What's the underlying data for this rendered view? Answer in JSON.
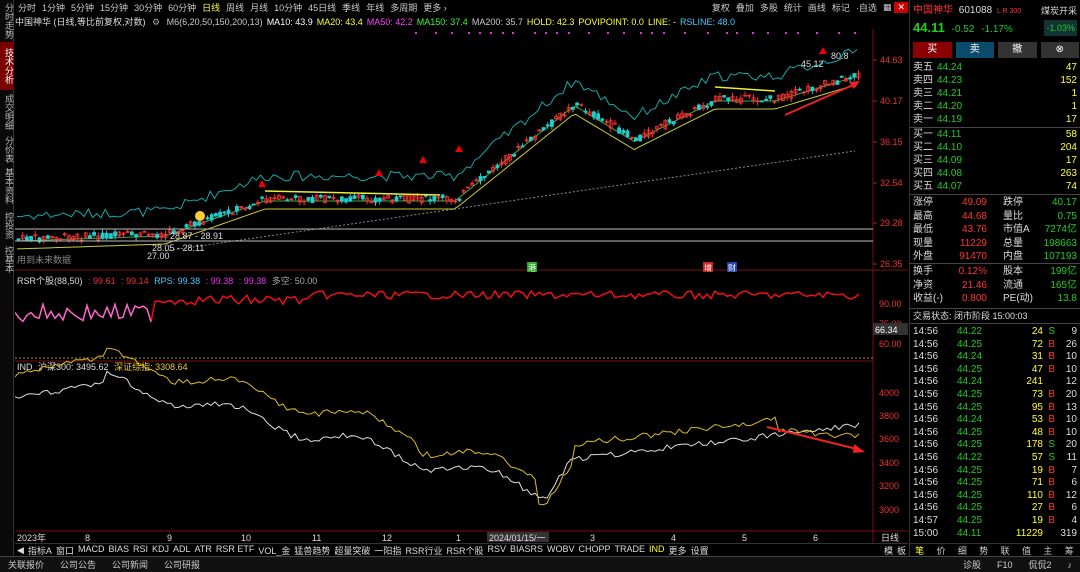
{
  "left_tabs": [
    {
      "label": "分时走势",
      "active": false
    },
    {
      "label": "技术分析",
      "active": true
    },
    {
      "label": "成交明细",
      "active": false
    },
    {
      "label": "分价表",
      "active": false
    },
    {
      "label": "基本资料",
      "active": false
    },
    {
      "label": "控投资",
      "active": false
    },
    {
      "label": "控基本",
      "active": false
    }
  ],
  "toolbar": {
    "periods": [
      "分时",
      "1分钟",
      "5分钟",
      "15分钟",
      "30分钟",
      "60分钟",
      "日线",
      "周线",
      "月线",
      "10分钟",
      "45日线",
      "季线",
      "年线",
      "多周期",
      "更多 ›"
    ],
    "active": "日线",
    "right": [
      "复权",
      "叠加",
      "多股",
      "统计",
      "画线",
      "标记",
      "·自选"
    ]
  },
  "legend": {
    "title": "中国神华 (日线,等比前复权,对数)",
    "items": [
      {
        "text": "M6(6,20,50,150,200,13)",
        "color": "#cccccc"
      },
      {
        "text": "MA10: 43.9",
        "color": "#ffffff"
      },
      {
        "text": "MA20: 43.4",
        "color": "#ffff33"
      },
      {
        "text": "MA50: 42.2",
        "color": "#ff44ff"
      },
      {
        "text": "MA150: 37.4",
        "color": "#33ff33"
      },
      {
        "text": "MA200: 35.7",
        "color": "#cccccc"
      },
      {
        "text": "HOLD: 42.3",
        "color": "#ffff33"
      },
      {
        "text": "POVIPOINT: 0.0",
        "color": "#ffff33"
      },
      {
        "text": "LINE: -",
        "color": "#ffff33"
      },
      {
        "text": "RSLINE: 48.0",
        "color": "#44ccff"
      }
    ]
  },
  "price_axis": [
    "44.63",
    "40.17",
    "36.15",
    "32.54",
    "29.28",
    "26.35"
  ],
  "annotations": {
    "a1": "28.87 - 28.91",
    "a2": "28.05 - 28.11",
    "a3": "27.00",
    "a4": "45.12",
    "a5": "80.8",
    "future": "用到未来数据",
    "badge_gang": "港",
    "badge_zeng": "增",
    "badge_cai": "财"
  },
  "rsr": {
    "legend": "RSR个股(88,50)",
    "v1": ": 99.61",
    "v2": ": 99.14",
    "v3": "RPS: 99.38",
    "v4": ": 99.38",
    "v5": ": 99.38",
    "v6": "多空: 50.00",
    "axis": [
      "90.00",
      "75.00",
      "60.00"
    ],
    "tag": "66.34"
  },
  "ind": {
    "legend": "IND",
    "v1": "沪深300: 3495.62",
    "v2": "深证综指: 3308.64",
    "axis": [
      "4000",
      "3800",
      "3600",
      "3400",
      "3200",
      "3000"
    ]
  },
  "time_axis": [
    "2023年",
    "8",
    "9",
    "10",
    "11",
    "12",
    "1",
    "2024/01/15/一",
    "3",
    "4",
    "5",
    "6"
  ],
  "quote": {
    "name": "中国神华",
    "code": "601088",
    "flag": "L R 300",
    "sector": "煤炭开采",
    "sector_chg": "-1.03%",
    "price": "44.11",
    "chg": "-0.52",
    "pct": "-1.17%",
    "btn_buy": "买",
    "btn_sell": "卖",
    "btn_cancel": "撤",
    "btn_other": "⊗",
    "asks": [
      {
        "l": "卖五",
        "p": "44.24",
        "v": "47"
      },
      {
        "l": "卖四",
        "p": "44.23",
        "v": "152"
      },
      {
        "l": "卖三",
        "p": "44.21",
        "v": "1"
      },
      {
        "l": "卖二",
        "p": "44.20",
        "v": "1"
      },
      {
        "l": "卖一",
        "p": "44.19",
        "v": "17"
      }
    ],
    "bids": [
      {
        "l": "买一",
        "p": "44.11",
        "v": "58"
      },
      {
        "l": "买二",
        "p": "44.10",
        "v": "204"
      },
      {
        "l": "买三",
        "p": "44.09",
        "v": "17"
      },
      {
        "l": "买四",
        "p": "44.08",
        "v": "263"
      },
      {
        "l": "买五",
        "p": "44.07",
        "v": "74"
      }
    ],
    "stats": [
      {
        "l1": "涨停",
        "v1": "49.09",
        "l2": "跌停",
        "v2": "40.17"
      },
      {
        "l1": "最高",
        "v1": "44.68",
        "l2": "量比",
        "v2": "0.75"
      },
      {
        "l1": "最低",
        "v1": "43.76",
        "l2": "市值A",
        "v2": "7274亿"
      },
      {
        "l1": "现量",
        "v1": "11229",
        "l2": "总量",
        "v2": "198663"
      },
      {
        "l1": "外盘",
        "v1": "91470",
        "l2": "内盘",
        "v2": "107193"
      }
    ],
    "stats2": [
      {
        "l1": "换手",
        "v1": "0.12%",
        "l2": "股本",
        "v2": "199亿"
      },
      {
        "l1": "净资",
        "v1": "21.46",
        "l2": "流通",
        "v2": "165亿"
      },
      {
        "l1": "收益(-)",
        "v1": "0.800",
        "l2": "PE(动)",
        "v2": "13.8"
      }
    ],
    "status": "交易状态: 闭市阶段 15:00:03",
    "ticks": [
      {
        "t": "14:56",
        "p": "44.22",
        "v": "24",
        "d": "S",
        "n": "9"
      },
      {
        "t": "14:56",
        "p": "44.25",
        "v": "72",
        "d": "B",
        "n": "26"
      },
      {
        "t": "14:56",
        "p": "44.24",
        "v": "31",
        "d": "B",
        "n": "10"
      },
      {
        "t": "14:56",
        "p": "44.25",
        "v": "47",
        "d": "B",
        "n": "10"
      },
      {
        "t": "14:56",
        "p": "44.24",
        "v": "241",
        "d": "",
        "n": "12"
      },
      {
        "t": "14:56",
        "p": "44.25",
        "v": "73",
        "d": "B",
        "n": "20"
      },
      {
        "t": "14:56",
        "p": "44.25",
        "v": "95",
        "d": "B",
        "n": "13"
      },
      {
        "t": "14:56",
        "p": "44.24",
        "v": "53",
        "d": "B",
        "n": "10"
      },
      {
        "t": "14:56",
        "p": "44.25",
        "v": "48",
        "d": "B",
        "n": "10"
      },
      {
        "t": "14:56",
        "p": "44.25",
        "v": "178",
        "d": "S",
        "n": "20"
      },
      {
        "t": "14:56",
        "p": "44.22",
        "v": "57",
        "d": "S",
        "n": "11"
      },
      {
        "t": "14:56",
        "p": "44.25",
        "v": "19",
        "d": "B",
        "n": "7"
      },
      {
        "t": "14:56",
        "p": "44.25",
        "v": "71",
        "d": "B",
        "n": "6"
      },
      {
        "t": "14:56",
        "p": "44.25",
        "v": "110",
        "d": "B",
        "n": "12"
      },
      {
        "t": "14:56",
        "p": "44.25",
        "v": "27",
        "d": "B",
        "n": "6"
      },
      {
        "t": "14:57",
        "p": "44.25",
        "v": "19",
        "d": "B",
        "n": "4"
      },
      {
        "t": "15:00",
        "p": "44.11",
        "v": "11229",
        "d": "",
        "n": "319"
      }
    ]
  },
  "indicator_bar": [
    "指标A",
    "窗口",
    "MACD",
    "BIAS",
    "RSI",
    "KDJ",
    "ADL",
    "ATR",
    "RSR ETF",
    "VOL_金",
    "猛兽趋势",
    "超量突破",
    "一阳指",
    "RSR行业",
    "RSR个股",
    "RSV",
    "BIASRS",
    "WOBV",
    "CHOPP",
    "TRADE",
    "IND",
    "更多",
    "设置"
  ],
  "indicator_active": "IND",
  "panel_tabs": [
    "模",
    "板"
  ],
  "line_tab": "日线",
  "status_bar": [
    "关联报价",
    "公司公告",
    "公司新闻",
    "公司研报"
  ],
  "status_right": [
    "诊股",
    "F10",
    "侃侃2"
  ],
  "bottom_icons": [
    "笔",
    "价",
    "细",
    "势",
    "联",
    "值",
    "主",
    "筹"
  ]
}
